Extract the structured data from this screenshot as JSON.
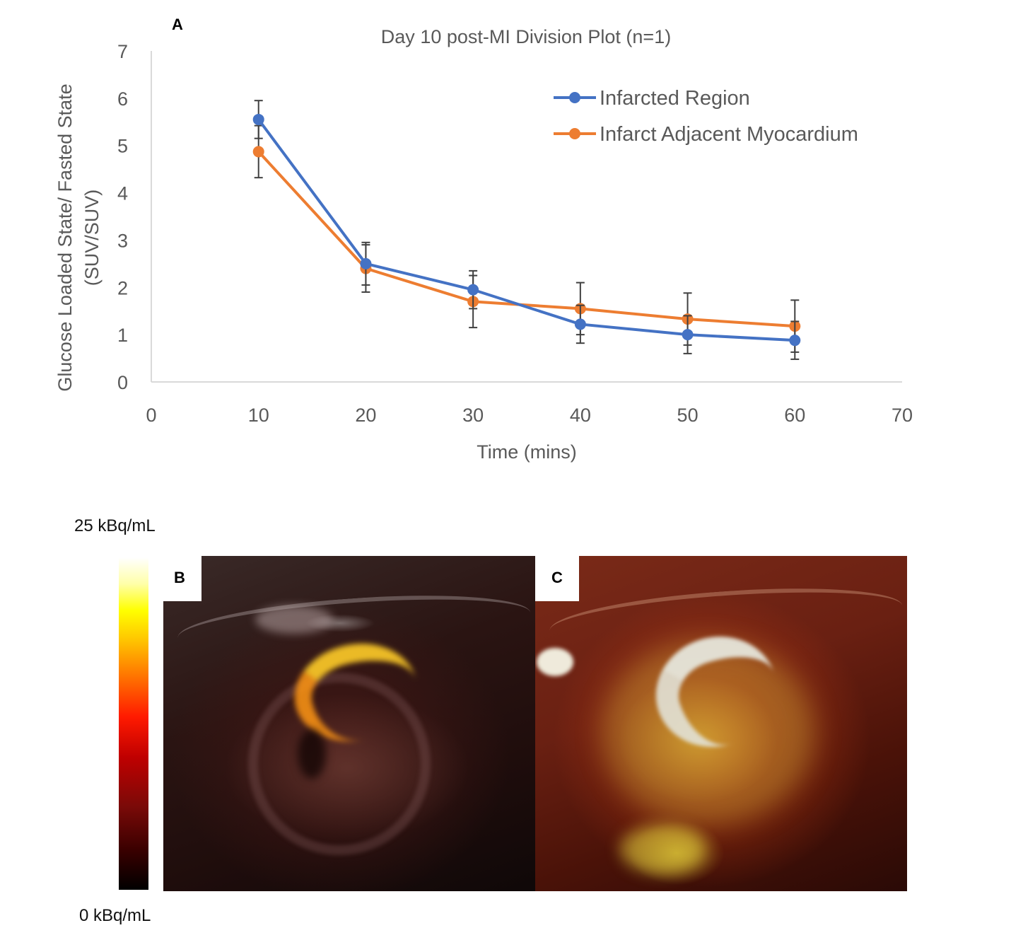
{
  "chart_data": {
    "type": "line",
    "title": "Day 10 post-MI Division Plot (n=1)",
    "xlabel": "Time (mins)",
    "ylabel_line1": "Glucose Loaded State/ Fasted State",
    "ylabel_line2": "(SUV/SUV)",
    "xlim": [
      0,
      70
    ],
    "ylim": [
      0,
      7
    ],
    "xticks": [
      "0",
      "10",
      "20",
      "30",
      "40",
      "50",
      "60",
      "70"
    ],
    "yticks": [
      "0",
      "1",
      "2",
      "3",
      "4",
      "5",
      "6",
      "7"
    ],
    "grid": false,
    "legend_position": "top-right",
    "series": [
      {
        "name": "Infarcted Region",
        "color": "#4472c4",
        "x": [
          10,
          20,
          30,
          40,
          50,
          60
        ],
        "y": [
          5.55,
          2.5,
          1.95,
          1.22,
          1.0,
          0.88
        ],
        "err": [
          0.4,
          0.45,
          0.4,
          0.4,
          0.4,
          0.4
        ]
      },
      {
        "name": "Infarct Adjacent Myocardium",
        "color": "#ed7d31",
        "x": [
          10,
          20,
          30,
          40,
          50,
          60
        ],
        "y": [
          4.87,
          2.4,
          1.7,
          1.55,
          1.33,
          1.18
        ],
        "err": [
          0.55,
          0.5,
          0.55,
          0.55,
          0.55,
          0.55
        ]
      }
    ]
  },
  "panels": {
    "a_label": "A",
    "b_label": "B",
    "c_label": "C"
  },
  "colorbar": {
    "max_label": "25 kBq/mL",
    "min_label": "0 kBq/mL"
  }
}
